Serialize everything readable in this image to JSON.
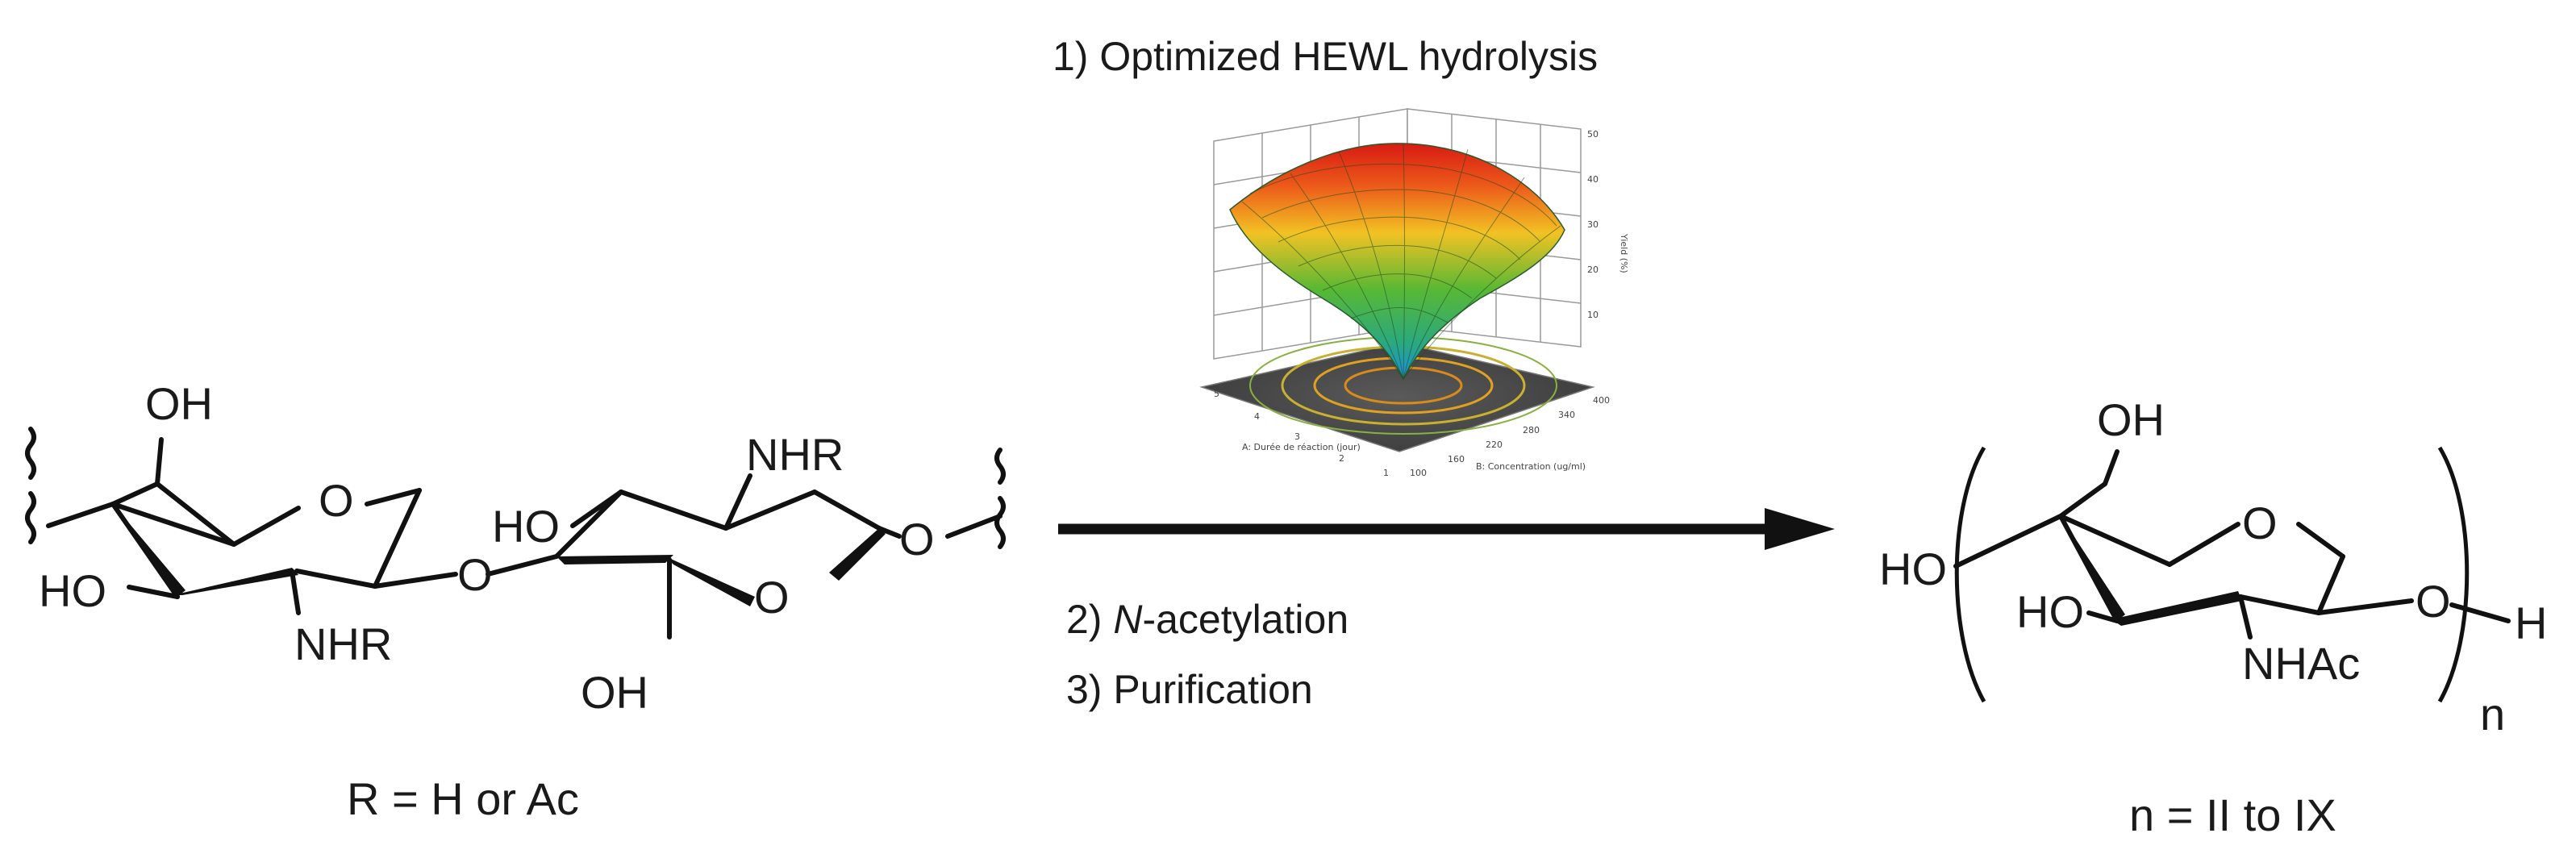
{
  "steps": {
    "step1": "1) Optimized HEWL hydrolysis",
    "step2_num": "2) ",
    "step2_italic": "N",
    "step2_rest": "-acetylation",
    "step3": "3) Purification"
  },
  "reactant": {
    "oh_top_left": "OH",
    "o_ring_left": "O",
    "ho_left": "HO",
    "nhr_left": "NHR",
    "o_glycosidic": "O",
    "ho_mid": "HO",
    "nhr_right": "NHR",
    "o_ring_right": "O",
    "oh_bottom": "OH",
    "o_terminal": "O",
    "caption": "R = H or Ac"
  },
  "product": {
    "ho_terminal": "HO",
    "oh_top": "OH",
    "o_ring": "O",
    "ho_ring": "HO",
    "nhac": "NHAc",
    "o_anomeric": "O",
    "h_end": "H",
    "subscript": "n",
    "caption": "n = II to IX"
  },
  "surface_plot": {
    "axis_x_label": "A: Durée de réaction (jour)",
    "axis_y_label": "B: Concentration (ug/ml)",
    "axis_z_label": "Yield (%)",
    "x_ticks": [
      "1",
      "2",
      "3",
      "4",
      "5"
    ],
    "y_ticks": [
      "100",
      "160",
      "220",
      "280",
      "340",
      "400"
    ],
    "z_ticks": [
      "10",
      "20",
      "30",
      "40",
      "50"
    ]
  },
  "colors": {
    "surface_top": "#e8201a",
    "surface_mid": "#f0c020",
    "surface_low": "#44b030",
    "surface_bottom": "#2a9ad8",
    "floor": "#4a4a4a",
    "contour": "#e0a020"
  }
}
